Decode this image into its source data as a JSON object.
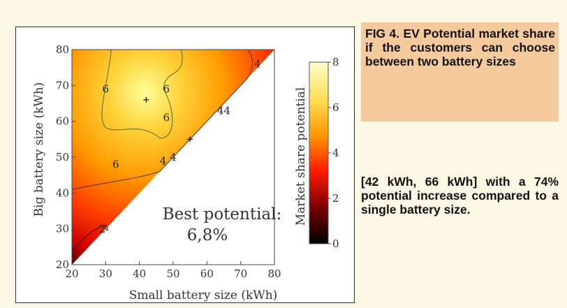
{
  "caption": {
    "figure_text": "FIG 4. EV Potential market share if the customers can choose between two battery sizes",
    "note": "[42 kWh, 66 kWh] with a 74% potential increase compared to a single battery size."
  },
  "chart_data": {
    "type": "heatmap",
    "xlabel": "Small battery size (kWh)",
    "ylabel": "Big battery size (kWh)",
    "xlim": [
      20,
      80
    ],
    "ylim": [
      20,
      80
    ],
    "x_ticks": [
      "20",
      "30",
      "40",
      "50",
      "60",
      "70",
      "80"
    ],
    "y_ticks": [
      "20",
      "30",
      "40",
      "50",
      "60",
      "70",
      "80"
    ],
    "colorbar": {
      "label": "Market share potential",
      "range": [
        0,
        8
      ],
      "ticks": [
        "0",
        "2",
        "4",
        "6",
        "8"
      ],
      "colors": [
        "#000000",
        "#7a0000",
        "#ff1a00",
        "#ff9900",
        "#ffe05a",
        "#ffffcc"
      ]
    },
    "annotation": {
      "line1": "Best potential:",
      "line2": "6,8%"
    },
    "best_point": {
      "x": 42,
      "y": 66
    },
    "second_point": {
      "x": 55,
      "y": 55
    },
    "contour_labels": [
      {
        "text": "6",
        "x": 30,
        "y": 68
      },
      {
        "text": "6",
        "x": 48,
        "y": 68
      },
      {
        "text": "6",
        "x": 48,
        "y": 60
      },
      {
        "text": "6",
        "x": 33,
        "y": 47
      },
      {
        "text": "4",
        "x": 75,
        "y": 75
      },
      {
        "text": "4",
        "x": 64,
        "y": 62
      },
      {
        "text": "4",
        "x": 66,
        "y": 62
      },
      {
        "text": "4",
        "x": 47,
        "y": 48
      },
      {
        "text": "4",
        "x": 50,
        "y": 49
      },
      {
        "text": "2",
        "x": 29,
        "y": 29
      }
    ]
  }
}
